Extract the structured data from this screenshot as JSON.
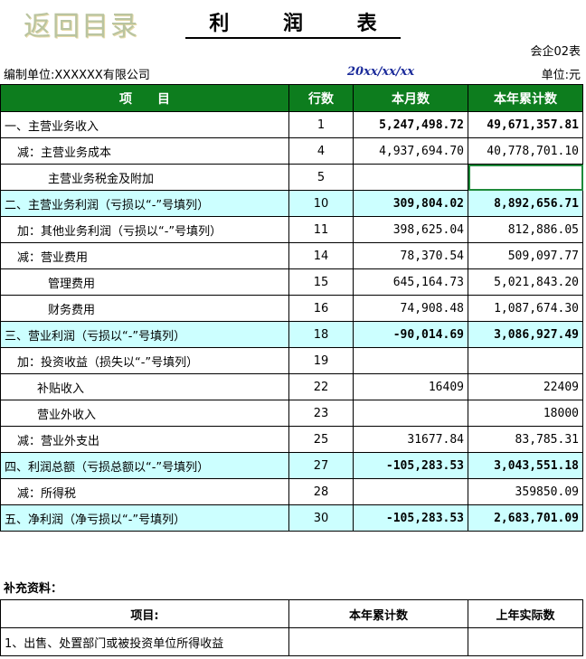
{
  "back_link": "返回目录",
  "title": "利 润 表",
  "form_code": "会企02表",
  "company": "编制单位:XXXXXX有限公司",
  "date": "20xx/xx/xx",
  "unit": "单位:元",
  "headers": {
    "item": "项　　目",
    "line": "行数",
    "month": "本月数",
    "ytd": "本年累计数"
  },
  "rows": [
    {
      "item": "一、主营业务收入",
      "line": "1",
      "month": "5,247,498.72",
      "ytd": "49,671,357.81"
    },
    {
      "item": "减：主营业务成本",
      "line": "4",
      "month": "4,937,694.70",
      "ytd": "40,778,701.10"
    },
    {
      "item": "主营业务税金及附加",
      "line": "5",
      "month": "",
      "ytd": ""
    },
    {
      "item": "二、主营业务利润（亏损以“-”号填列）",
      "line": "10",
      "month": "309,804.02",
      "ytd": "8,892,656.71"
    },
    {
      "item": "加：其他业务利润（亏损以“-”号填列）",
      "line": "11",
      "month": "398,625.04",
      "ytd": "812,886.05"
    },
    {
      "item": "减：营业费用",
      "line": "14",
      "month": "78,370.54",
      "ytd": "509,097.77"
    },
    {
      "item": "管理费用",
      "line": "15",
      "month": "645,164.73",
      "ytd": "5,021,843.20"
    },
    {
      "item": "财务费用",
      "line": "16",
      "month": "74,908.48",
      "ytd": "1,087,674.30"
    },
    {
      "item": "三、营业利润（亏损以“-”号填列）",
      "line": "18",
      "month": "-90,014.69",
      "ytd": "3,086,927.49"
    },
    {
      "item": "加：投资收益（损失以“-”号填列）",
      "line": "19",
      "month": "",
      "ytd": ""
    },
    {
      "item": "补贴收入",
      "line": "22",
      "month": "16409",
      "ytd": "22409"
    },
    {
      "item": "营业外收入",
      "line": "23",
      "month": "",
      "ytd": "18000"
    },
    {
      "item": "减：营业外支出",
      "line": "25",
      "month": "31677.84",
      "ytd": "83,785.31"
    },
    {
      "item": "四、利润总额（亏损总额以“-”号填列）",
      "line": "27",
      "month": "-105,283.53",
      "ytd": "3,043,551.18"
    },
    {
      "item": "减：所得税",
      "line": "28",
      "month": "",
      "ytd": "359850.09"
    },
    {
      "item": "五、净利润（净亏损以“-”号填列）",
      "line": "30",
      "month": "-105,283.53",
      "ytd": "2,683,701.09"
    }
  ],
  "supplement": {
    "label": "补充资料：",
    "headers": {
      "item": "项目:",
      "current": "本年累计数",
      "prior": "上年实际数"
    },
    "rows": [
      {
        "item": "1、出售、处置部门或被投资单位所得收益",
        "current": "",
        "prior": ""
      }
    ]
  }
}
